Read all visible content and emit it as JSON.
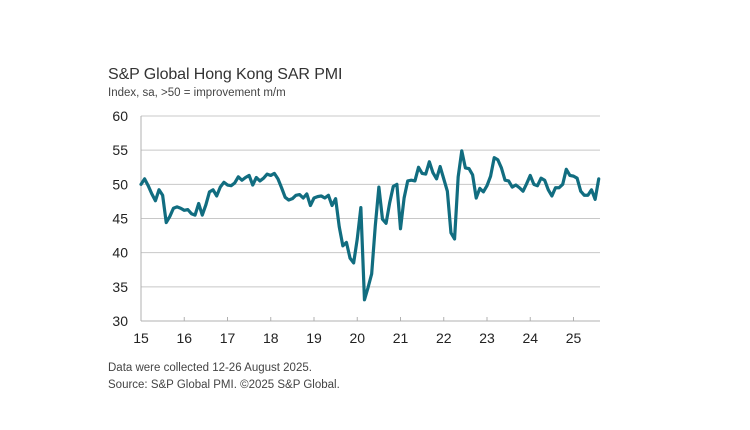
{
  "title": "S&P Global Hong Kong SAR PMI",
  "subtitle": "Index, sa, >50 = improvement m/m",
  "footnotes": {
    "collection": "Data were collected 12-26 August 2025.",
    "source": "Source: S&P Global PMI. ©2025 S&P Global."
  },
  "colors": {
    "line": "#116d80",
    "grid": "#c8c8c8",
    "axis": "#b0b0b0"
  },
  "chart_data": {
    "type": "line",
    "title": "S&P Global Hong Kong SAR PMI",
    "subtitle": "Index, sa, >50 = improvement m/m",
    "xlabel": "",
    "ylabel": "",
    "ylim": [
      30,
      60
    ],
    "yticks": [
      30,
      35,
      40,
      45,
      50,
      55,
      60
    ],
    "xtick_labels": [
      "15",
      "16",
      "17",
      "18",
      "19",
      "20",
      "21",
      "22",
      "23",
      "24",
      "25"
    ],
    "x_start": "2015-01",
    "x_end": "2025-08",
    "frequency": "monthly",
    "grid": "horizontal",
    "legend": "none",
    "series": [
      {
        "name": "Hong Kong SAR PMI",
        "values": [
          50.0,
          50.8,
          49.8,
          48.6,
          47.6,
          49.2,
          48.4,
          44.4,
          45.3,
          46.5,
          46.7,
          46.5,
          46.2,
          46.3,
          45.7,
          45.5,
          47.2,
          45.5,
          47.0,
          48.9,
          49.2,
          48.3,
          49.6,
          50.3,
          49.9,
          49.8,
          50.2,
          51.1,
          50.6,
          51.0,
          51.3,
          49.9,
          51.0,
          50.5,
          50.9,
          51.5,
          51.3,
          51.6,
          50.8,
          49.5,
          48.1,
          47.7,
          47.9,
          48.4,
          48.5,
          48.0,
          48.6,
          46.9,
          48.0,
          48.2,
          48.3,
          48.0,
          48.4,
          46.9,
          47.9,
          43.8,
          41.0,
          41.5,
          39.2,
          38.5,
          42.0,
          46.6,
          33.1,
          34.9,
          36.9,
          43.9,
          49.6,
          44.9,
          44.3,
          47.3,
          49.7,
          50.0,
          43.5,
          48.0,
          50.5,
          50.6,
          50.5,
          52.5,
          51.6,
          51.5,
          53.3,
          51.7,
          50.8,
          52.6,
          50.8,
          49.0,
          42.9,
          42.0,
          51.1,
          54.9,
          52.4,
          52.3,
          51.4,
          48.0,
          49.4,
          48.9,
          49.8,
          51.2,
          53.9,
          53.6,
          52.4,
          50.6,
          50.5,
          49.6,
          49.9,
          49.5,
          49.0,
          50.1,
          51.3,
          50.0,
          49.8,
          50.9,
          50.6,
          49.2,
          48.3,
          49.5,
          49.5,
          50.0,
          52.2,
          51.3,
          51.2,
          50.9,
          49.0,
          48.4,
          48.4,
          49.2,
          47.8,
          50.8
        ]
      }
    ]
  }
}
